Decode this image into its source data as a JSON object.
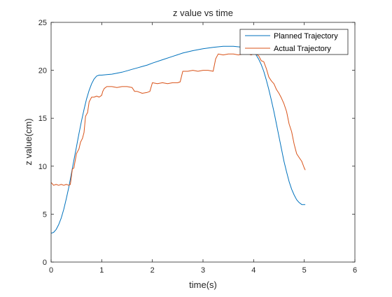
{
  "chart_data": {
    "type": "line",
    "title": "z value vs time",
    "xlabel": "time(s)",
    "ylabel": "z value(cm)",
    "xlim": [
      0,
      6
    ],
    "ylim": [
      0,
      25
    ],
    "xticks": [
      0,
      1,
      2,
      3,
      4,
      5,
      6
    ],
    "yticks": [
      0,
      5,
      10,
      15,
      20,
      25
    ],
    "grid": false,
    "legend_position": "top-right",
    "series": [
      {
        "name": "Planned Trajectory",
        "color": "#0072BD",
        "x": [
          0,
          0.05,
          0.1,
          0.15,
          0.2,
          0.25,
          0.3,
          0.35,
          0.4,
          0.45,
          0.5,
          0.55,
          0.6,
          0.65,
          0.7,
          0.75,
          0.8,
          0.85,
          0.9,
          0.95,
          1.0,
          1.1,
          1.2,
          1.3,
          1.4,
          1.5,
          1.6,
          1.7,
          1.8,
          1.9,
          2.0,
          2.2,
          2.4,
          2.6,
          2.8,
          3.0,
          3.2,
          3.4,
          3.6,
          3.8,
          3.9,
          4.0,
          4.05,
          4.1,
          4.15,
          4.2,
          4.25,
          4.3,
          4.35,
          4.4,
          4.45,
          4.5,
          4.55,
          4.6,
          4.65,
          4.7,
          4.75,
          4.8,
          4.85,
          4.9,
          4.95,
          5.0,
          5.02
        ],
        "y": [
          3.0,
          3.1,
          3.4,
          3.9,
          4.6,
          5.5,
          6.6,
          7.8,
          9.2,
          10.6,
          12.0,
          13.4,
          14.7,
          15.9,
          17.0,
          17.9,
          18.6,
          19.1,
          19.4,
          19.5,
          19.5,
          19.55,
          19.6,
          19.7,
          19.8,
          19.95,
          20.1,
          20.25,
          20.4,
          20.55,
          20.75,
          21.1,
          21.45,
          21.8,
          22.05,
          22.25,
          22.4,
          22.5,
          22.5,
          22.4,
          22.2,
          21.9,
          21.6,
          21.15,
          20.6,
          19.9,
          19.0,
          18.0,
          16.9,
          15.7,
          14.4,
          13.1,
          11.8,
          10.5,
          9.4,
          8.4,
          7.6,
          7.0,
          6.5,
          6.2,
          6.0,
          6.0,
          6.0
        ]
      },
      {
        "name": "Actual Trajectory",
        "color": "#D95319",
        "x": [
          0,
          0.05,
          0.1,
          0.15,
          0.2,
          0.25,
          0.3,
          0.35,
          0.38,
          0.42,
          0.45,
          0.5,
          0.52,
          0.55,
          0.58,
          0.6,
          0.62,
          0.65,
          0.68,
          0.7,
          0.72,
          0.75,
          0.78,
          0.8,
          0.85,
          0.9,
          0.95,
          1.0,
          1.02,
          1.05,
          1.1,
          1.2,
          1.3,
          1.4,
          1.5,
          1.6,
          1.65,
          1.7,
          1.8,
          1.9,
          1.95,
          2.0,
          2.1,
          2.2,
          2.3,
          2.4,
          2.5,
          2.55,
          2.6,
          2.7,
          2.8,
          2.9,
          3.0,
          3.1,
          3.2,
          3.25,
          3.3,
          3.4,
          3.5,
          3.6,
          3.7,
          3.8,
          3.9,
          3.95,
          4.0,
          4.05,
          4.1,
          4.15,
          4.2,
          4.25,
          4.3,
          4.35,
          4.4,
          4.45,
          4.5,
          4.55,
          4.6,
          4.65,
          4.7,
          4.75,
          4.8,
          4.85,
          4.9,
          4.95,
          5.0,
          5.02
        ],
        "y": [
          8.3,
          8.0,
          8.1,
          8.0,
          8.1,
          8.0,
          8.1,
          8.0,
          8.1,
          9.7,
          9.8,
          11.3,
          11.5,
          11.8,
          12.5,
          12.7,
          12.9,
          13.5,
          15.2,
          15.4,
          15.6,
          16.7,
          17.0,
          17.2,
          17.2,
          17.3,
          17.2,
          17.4,
          17.8,
          18.1,
          18.3,
          18.3,
          18.2,
          18.3,
          18.3,
          18.2,
          17.8,
          17.8,
          17.6,
          17.7,
          17.8,
          18.7,
          18.6,
          18.7,
          18.6,
          18.7,
          18.7,
          18.8,
          19.9,
          19.9,
          20.0,
          19.9,
          20.0,
          20.0,
          19.9,
          21.2,
          21.7,
          21.6,
          21.7,
          21.7,
          21.6,
          21.7,
          21.7,
          21.6,
          21.7,
          21.7,
          21.5,
          21.0,
          20.9,
          20.2,
          19.3,
          18.9,
          18.6,
          18.0,
          17.6,
          17.1,
          16.5,
          15.7,
          14.4,
          13.6,
          12.3,
          11.3,
          10.9,
          10.5,
          9.8,
          9.6
        ]
      }
    ]
  }
}
